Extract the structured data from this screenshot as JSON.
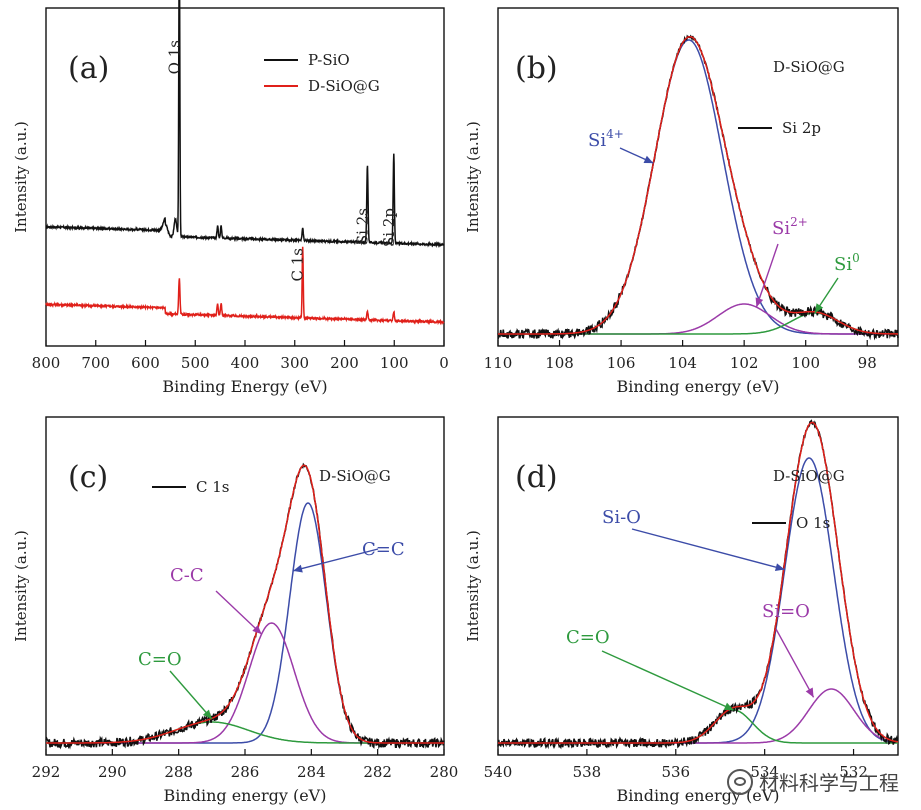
{
  "watermark": "材料科学与工程",
  "colors": {
    "black": "#111111",
    "red": "#e0201a",
    "blue": "#3c4ca8",
    "purple": "#9b3aa8",
    "green": "#2e9a3e"
  },
  "chart_data": [
    {
      "type": "line",
      "panel_label": "(a)",
      "xlabel": "Binding Energy (eV)",
      "ylabel": "Intensity (a.u.)",
      "xlim": [
        800,
        0
      ],
      "x_reversed": true,
      "x_ticks": [
        800,
        700,
        600,
        500,
        400,
        300,
        200,
        100,
        0
      ],
      "legend_position": "top-right",
      "series": [
        {
          "name": "P-SiO",
          "color": "black",
          "baseline": 0.4,
          "peaks": [
            [
              560,
              0.04,
              10
            ],
            [
              540,
              0.06,
              6
            ],
            [
              532,
              1.0,
              2.5
            ],
            [
              455,
              0.04,
              3
            ],
            [
              448,
              0.04,
              3
            ],
            [
              284,
              0.04,
              3
            ],
            [
              154,
              0.26,
              3
            ],
            [
              101,
              0.3,
              3
            ]
          ]
        },
        {
          "name": "D-SiO@G",
          "color": "red",
          "baseline": 0.14,
          "peaks": [
            [
              532,
              0.12,
              3
            ],
            [
              455,
              0.04,
              3
            ],
            [
              448,
              0.04,
              3
            ],
            [
              284,
              0.24,
              2.5
            ],
            [
              154,
              0.03,
              3
            ],
            [
              101,
              0.03,
              3
            ]
          ]
        }
      ],
      "peak_labels": [
        {
          "text": "O 1s",
          "x": 532
        },
        {
          "text": "C 1s",
          "x": 284
        },
        {
          "text": "Si 2s",
          "x": 154
        },
        {
          "text": "Si 2p",
          "x": 101
        }
      ]
    },
    {
      "type": "line",
      "panel_label": "(b)",
      "sample": "D-SiO@G",
      "xlabel": "Binding energy (eV)",
      "ylabel": "Intensity (a.u.)",
      "xlim": [
        110,
        97
      ],
      "x_reversed": true,
      "x_ticks": [
        110,
        108,
        106,
        104,
        102,
        100,
        98
      ],
      "legend": "Si 2p",
      "components": [
        {
          "name": "Si4+",
          "label_base": "Si",
          "label_sup": "4+",
          "center": 103.8,
          "height": 0.98,
          "fwhm": 2.6,
          "color": "blue"
        },
        {
          "name": "Si2+",
          "label_base": "Si",
          "label_sup": "2+",
          "center": 102.0,
          "height": 0.1,
          "fwhm": 2.0,
          "color": "purple"
        },
        {
          "name": "Si0",
          "label_base": "Si",
          "label_sup": "0",
          "center": 99.7,
          "height": 0.07,
          "fwhm": 1.8,
          "color": "green"
        }
      ]
    },
    {
      "type": "line",
      "panel_label": "(c)",
      "sample": "D-SiO@G",
      "xlabel": "Binding energy (eV)",
      "ylabel": "Intensity (a.u.)",
      "xlim": [
        292,
        280
      ],
      "x_reversed": true,
      "x_ticks": [
        292,
        290,
        288,
        286,
        284,
        282,
        280
      ],
      "legend": "C 1s",
      "components": [
        {
          "name": "C=C",
          "label_base": "C=C",
          "label_sup": "",
          "center": 284.1,
          "height": 0.8,
          "fwhm": 1.3,
          "color": "blue"
        },
        {
          "name": "C-C",
          "label_base": "C-C",
          "label_sup": "",
          "center": 285.2,
          "height": 0.4,
          "fwhm": 1.6,
          "color": "purple"
        },
        {
          "name": "C=O",
          "label_base": "C=O",
          "label_sup": "",
          "center": 287.0,
          "height": 0.07,
          "fwhm": 2.6,
          "color": "green"
        }
      ]
    },
    {
      "type": "line",
      "panel_label": "(d)",
      "sample": "D-SiO@G",
      "xlabel": "Binding energy (eV)",
      "ylabel": "Intensity (a.u.)",
      "xlim": [
        540,
        531
      ],
      "x_reversed": true,
      "x_ticks": [
        540,
        538,
        536,
        534,
        532
      ],
      "legend": "O 1s",
      "components": [
        {
          "name": "Si-O",
          "label_base": "Si-O",
          "label_sup": "",
          "center": 533.0,
          "height": 0.95,
          "fwhm": 1.3,
          "color": "blue"
        },
        {
          "name": "Si=O",
          "label_base": "Si=O",
          "label_sup": "",
          "center": 532.5,
          "height": 0.18,
          "fwhm": 1.2,
          "color": "purple"
        },
        {
          "name": "C=O",
          "label_base": "C=O",
          "label_sup": "",
          "center": 534.7,
          "height": 0.11,
          "fwhm": 1.0,
          "color": "green"
        }
      ]
    }
  ]
}
